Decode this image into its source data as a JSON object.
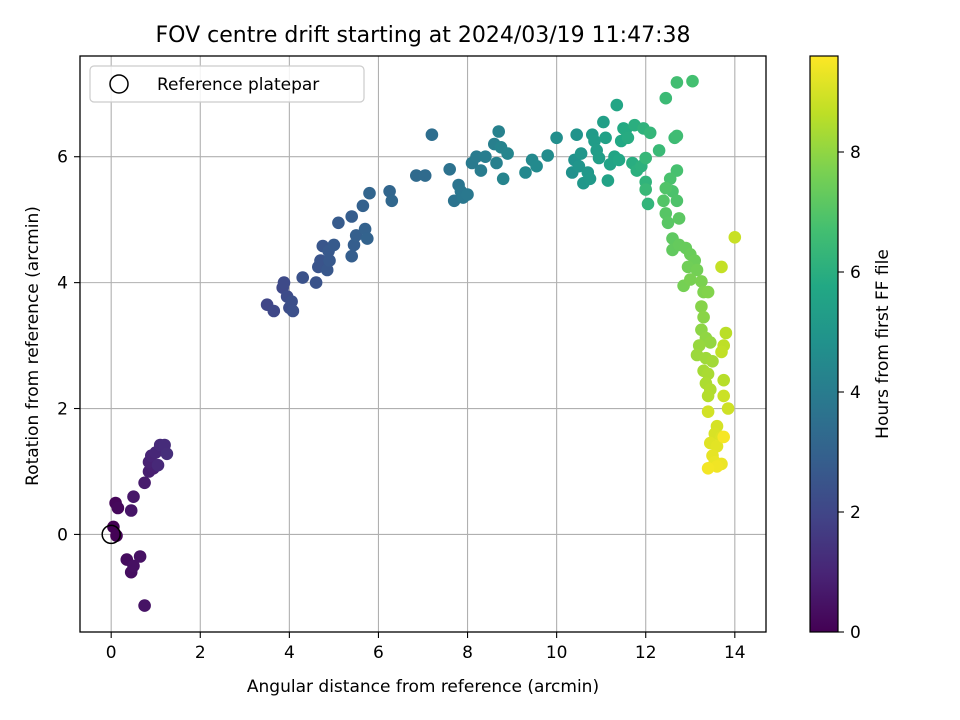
{
  "chart_data": {
    "type": "scatter",
    "title": "FOV centre drift starting at 2024/03/19 11:47:38",
    "xlabel": "Angular distance from reference (arcmin)",
    "ylabel": "Rotation from reference (arcmin)",
    "xlim": [
      -0.7,
      14.7
    ],
    "ylim": [
      -1.55,
      7.6
    ],
    "xticks": [
      0,
      2,
      4,
      6,
      8,
      10,
      12,
      14
    ],
    "yticks": [
      0,
      2,
      4,
      6
    ],
    "grid": true,
    "legend": {
      "placement": "top-left",
      "entries": [
        "Reference platepar"
      ]
    },
    "reference_point": {
      "name": "Reference platepar",
      "x": 0,
      "y": 0
    },
    "colorbar": {
      "label": "Hours from first FF file",
      "range": [
        0,
        9.6
      ],
      "ticks": [
        0,
        2,
        4,
        6,
        8
      ],
      "colormap": [
        "#440154",
        "#482475",
        "#414487",
        "#355f8d",
        "#2a788e",
        "#21918c",
        "#22a884",
        "#44bf70",
        "#7ad151",
        "#bddf26",
        "#fde725"
      ]
    },
    "series": [
      {
        "points": [
          [
            0.05,
            0.12,
            0.0
          ],
          [
            0.12,
            -0.02,
            0.05
          ],
          [
            0.1,
            0.5,
            0.15
          ],
          [
            0.15,
            0.42,
            0.2
          ],
          [
            0.35,
            -0.4,
            0.3
          ],
          [
            0.45,
            -0.6,
            0.35
          ],
          [
            0.5,
            -0.5,
            0.4
          ],
          [
            0.65,
            -0.35,
            0.45
          ],
          [
            0.75,
            -1.13,
            0.5
          ],
          [
            0.45,
            0.38,
            0.55
          ],
          [
            0.5,
            0.6,
            0.6
          ],
          [
            0.75,
            0.82,
            0.7
          ],
          [
            0.85,
            1.0,
            0.8
          ],
          [
            0.95,
            1.05,
            0.85
          ],
          [
            0.85,
            1.15,
            0.9
          ],
          [
            0.9,
            1.25,
            1.0
          ],
          [
            1.0,
            1.3,
            1.05
          ],
          [
            1.05,
            1.1,
            1.1
          ],
          [
            1.1,
            1.42,
            1.15
          ],
          [
            1.2,
            1.42,
            1.2
          ],
          [
            1.25,
            1.28,
            1.25
          ],
          [
            3.5,
            3.65,
            2.0
          ],
          [
            3.65,
            3.55,
            2.05
          ],
          [
            3.85,
            3.92,
            2.1
          ],
          [
            3.88,
            4.0,
            2.15
          ],
          [
            3.95,
            3.78,
            2.2
          ],
          [
            4.0,
            3.6,
            2.25
          ],
          [
            4.05,
            3.7,
            2.3
          ],
          [
            4.08,
            3.55,
            2.35
          ],
          [
            4.3,
            4.08,
            2.4
          ],
          [
            4.6,
            4.0,
            2.45
          ],
          [
            4.65,
            4.25,
            2.5
          ],
          [
            4.7,
            4.35,
            2.5
          ],
          [
            4.75,
            4.58,
            2.55
          ],
          [
            4.85,
            4.2,
            2.6
          ],
          [
            4.9,
            4.35,
            2.65
          ],
          [
            4.88,
            4.5,
            2.65
          ],
          [
            5.0,
            4.6,
            2.7
          ],
          [
            5.1,
            4.95,
            2.75
          ],
          [
            5.4,
            5.05,
            2.8
          ],
          [
            5.4,
            4.42,
            2.85
          ],
          [
            5.45,
            4.6,
            2.85
          ],
          [
            5.5,
            4.75,
            2.9
          ],
          [
            5.65,
            5.22,
            2.95
          ],
          [
            5.7,
            4.85,
            3.0
          ],
          [
            5.75,
            4.7,
            3.05
          ],
          [
            5.8,
            5.42,
            3.1
          ],
          [
            6.25,
            5.45,
            3.15
          ],
          [
            6.3,
            5.3,
            3.2
          ],
          [
            6.85,
            5.7,
            3.3
          ],
          [
            7.05,
            5.7,
            3.35
          ],
          [
            7.2,
            6.35,
            3.45
          ],
          [
            7.6,
            5.8,
            3.6
          ],
          [
            7.7,
            5.3,
            3.65
          ],
          [
            7.8,
            5.55,
            3.7
          ],
          [
            7.85,
            5.45,
            3.75
          ],
          [
            7.9,
            5.35,
            3.8
          ],
          [
            8.0,
            5.4,
            3.85
          ],
          [
            8.1,
            5.9,
            3.9
          ],
          [
            8.2,
            6.0,
            3.95
          ],
          [
            8.3,
            5.78,
            4.0
          ],
          [
            8.4,
            6.0,
            4.05
          ],
          [
            8.6,
            6.2,
            4.1
          ],
          [
            8.65,
            5.9,
            4.15
          ],
          [
            8.7,
            6.4,
            4.2
          ],
          [
            8.75,
            6.15,
            4.25
          ],
          [
            8.8,
            5.65,
            4.3
          ],
          [
            8.9,
            6.05,
            4.35
          ],
          [
            9.3,
            5.75,
            4.45
          ],
          [
            9.45,
            5.95,
            4.5
          ],
          [
            9.55,
            5.85,
            4.55
          ],
          [
            9.8,
            6.02,
            4.6
          ],
          [
            10.0,
            6.3,
            4.7
          ],
          [
            10.35,
            5.75,
            4.8
          ],
          [
            10.4,
            5.95,
            4.85
          ],
          [
            10.45,
            6.35,
            4.9
          ],
          [
            10.5,
            5.85,
            4.95
          ],
          [
            10.55,
            6.05,
            5.0
          ],
          [
            10.6,
            5.58,
            5.05
          ],
          [
            10.7,
            5.75,
            5.1
          ],
          [
            10.75,
            5.65,
            5.15
          ],
          [
            10.8,
            6.35,
            5.2
          ],
          [
            10.85,
            6.25,
            5.25
          ],
          [
            10.9,
            6.1,
            5.3
          ],
          [
            10.95,
            5.98,
            5.35
          ],
          [
            11.05,
            6.55,
            5.4
          ],
          [
            11.1,
            6.3,
            5.45
          ],
          [
            11.15,
            5.62,
            5.5
          ],
          [
            11.2,
            5.88,
            5.55
          ],
          [
            11.3,
            6.0,
            5.6
          ],
          [
            11.35,
            6.82,
            5.65
          ],
          [
            11.4,
            5.95,
            5.7
          ],
          [
            11.45,
            6.25,
            5.75
          ],
          [
            11.5,
            6.45,
            5.8
          ],
          [
            11.55,
            6.42,
            5.85
          ],
          [
            11.6,
            6.3,
            5.9
          ],
          [
            11.7,
            5.9,
            5.95
          ],
          [
            11.75,
            6.5,
            6.0
          ],
          [
            11.8,
            5.78,
            6.05
          ],
          [
            11.9,
            5.85,
            6.1
          ],
          [
            11.95,
            6.45,
            6.15
          ],
          [
            12.0,
            5.6,
            6.2
          ],
          [
            12.05,
            5.25,
            6.25
          ],
          [
            12.1,
            6.38,
            6.3
          ],
          [
            12.0,
            5.98,
            6.35
          ],
          [
            12.0,
            5.48,
            6.4
          ],
          [
            12.3,
            6.1,
            6.45
          ],
          [
            12.45,
            6.93,
            6.5
          ],
          [
            12.65,
            6.3,
            6.55
          ],
          [
            12.7,
            6.33,
            6.6
          ],
          [
            12.7,
            7.18,
            6.65
          ],
          [
            13.05,
            7.2,
            6.7
          ],
          [
            12.7,
            5.78,
            6.75
          ],
          [
            12.55,
            5.65,
            6.8
          ],
          [
            12.6,
            5.45,
            6.85
          ],
          [
            12.7,
            5.3,
            6.9
          ],
          [
            12.45,
            5.5,
            6.95
          ],
          [
            12.4,
            5.3,
            7.0
          ],
          [
            12.45,
            5.1,
            7.05
          ],
          [
            12.5,
            4.95,
            7.1
          ],
          [
            12.75,
            5.02,
            7.15
          ],
          [
            12.6,
            4.7,
            7.2
          ],
          [
            12.6,
            4.52,
            7.25
          ],
          [
            12.75,
            4.6,
            7.3
          ],
          [
            12.9,
            4.55,
            7.35
          ],
          [
            13.0,
            4.45,
            7.4
          ],
          [
            13.1,
            4.35,
            7.45
          ],
          [
            12.95,
            4.25,
            7.5
          ],
          [
            13.15,
            4.2,
            7.55
          ],
          [
            12.85,
            3.95,
            7.6
          ],
          [
            13.0,
            4.05,
            7.65
          ],
          [
            13.25,
            4.02,
            7.7
          ],
          [
            13.3,
            3.85,
            7.75
          ],
          [
            13.4,
            3.85,
            7.8
          ],
          [
            13.25,
            3.62,
            7.85
          ],
          [
            13.3,
            3.45,
            7.9
          ],
          [
            13.25,
            3.25,
            7.95
          ],
          [
            13.35,
            3.12,
            8.0
          ],
          [
            13.45,
            3.05,
            8.05
          ],
          [
            13.2,
            3.0,
            8.1
          ],
          [
            13.15,
            2.85,
            8.15
          ],
          [
            13.35,
            2.8,
            8.2
          ],
          [
            13.5,
            2.75,
            8.25
          ],
          [
            13.3,
            2.6,
            8.3
          ],
          [
            13.4,
            2.55,
            8.35
          ],
          [
            13.35,
            2.4,
            8.4
          ],
          [
            13.45,
            2.3,
            8.45
          ],
          [
            13.4,
            2.2,
            8.5
          ],
          [
            13.75,
            2.45,
            8.55
          ],
          [
            13.8,
            3.2,
            8.6
          ],
          [
            13.75,
            3.0,
            8.65
          ],
          [
            13.7,
            2.9,
            8.7
          ],
          [
            13.7,
            4.25,
            8.75
          ],
          [
            14.0,
            4.72,
            8.8
          ],
          [
            13.75,
            2.2,
            8.85
          ],
          [
            13.85,
            2.0,
            8.9
          ],
          [
            13.4,
            1.95,
            8.95
          ],
          [
            13.6,
            1.72,
            9.0
          ],
          [
            13.55,
            1.6,
            9.05
          ],
          [
            13.7,
            1.55,
            9.1
          ],
          [
            13.45,
            1.45,
            9.15
          ],
          [
            13.6,
            1.4,
            9.2
          ],
          [
            13.5,
            1.25,
            9.25
          ],
          [
            13.55,
            1.15,
            9.3
          ],
          [
            13.7,
            1.12,
            9.35
          ],
          [
            13.6,
            1.08,
            9.4
          ],
          [
            13.4,
            1.05,
            9.45
          ],
          [
            13.75,
            1.55,
            9.5
          ]
        ]
      }
    ]
  }
}
